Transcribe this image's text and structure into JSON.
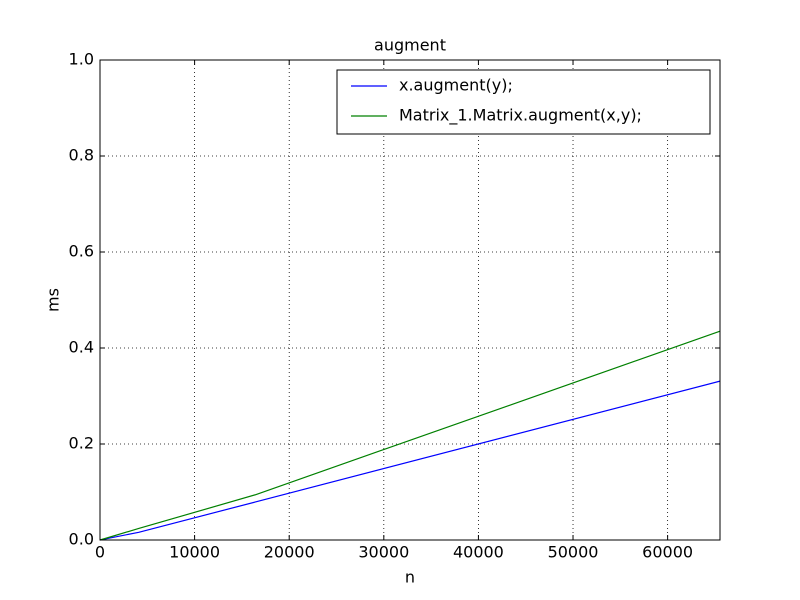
{
  "chart_data": {
    "type": "line",
    "title": "augment",
    "x_label": "n",
    "y_label": "ms",
    "x": [
      0,
      1024,
      4096,
      16384,
      65536
    ],
    "series": [
      {
        "name": "x.augment(y);",
        "color": "#0000ff",
        "values": [
          0,
          0.004,
          0.016,
          0.079,
          0.331
        ]
      },
      {
        "name": "Matrix_1.Matrix.augment(x,y);",
        "color": "#008000",
        "values": [
          0,
          0.006,
          0.024,
          0.094,
          0.435
        ]
      }
    ],
    "xlim": [
      0,
      65536
    ],
    "ylim": [
      0,
      1
    ],
    "xticks": [
      0,
      10000,
      20000,
      30000,
      40000,
      50000,
      60000
    ],
    "yticks": [
      {
        "value": 0,
        "label": "0.0"
      },
      0.2,
      0.4,
      0.6,
      0.8,
      {
        "value": 1,
        "label": "1.0"
      }
    ],
    "grid": true,
    "legend": "upper right"
  }
}
